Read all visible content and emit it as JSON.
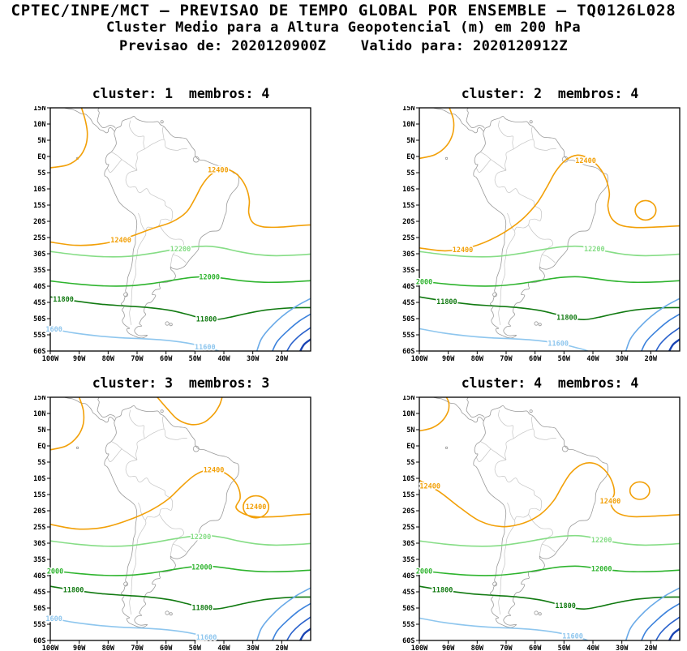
{
  "header": {
    "title": "CPTEC/INPE/MCT — PREVISAO DE TEMPO GLOBAL POR ENSEMBLE — TQ0126L028",
    "subtitle": "Cluster Medio para a Altura Geopotencial (m) em 200 hPa",
    "validity": "Previsao de: 2020120900Z    Valido para: 2020120912Z"
  },
  "panels": [
    {
      "title": "cluster: 1  membros: 4"
    },
    {
      "title": "cluster: 2  membros: 4"
    },
    {
      "title": "cluster: 3  membros: 3"
    },
    {
      "title": "cluster: 4  membros: 4"
    }
  ],
  "axes": {
    "lat": [
      {
        "label": "15N",
        "deg": 15
      },
      {
        "label": "10N",
        "deg": 10
      },
      {
        "label": "5N",
        "deg": 5
      },
      {
        "label": "EQ",
        "deg": 0
      },
      {
        "label": "5S",
        "deg": -5
      },
      {
        "label": "10S",
        "deg": -10
      },
      {
        "label": "15S",
        "deg": -15
      },
      {
        "label": "20S",
        "deg": -20
      },
      {
        "label": "25S",
        "deg": -25
      },
      {
        "label": "30S",
        "deg": -30
      },
      {
        "label": "35S",
        "deg": -35
      },
      {
        "label": "40S",
        "deg": -40
      },
      {
        "label": "45S",
        "deg": -45
      },
      {
        "label": "50S",
        "deg": -50
      },
      {
        "label": "55S",
        "deg": -55
      },
      {
        "label": "60S",
        "deg": -60
      }
    ],
    "lon": [
      {
        "label": "100W",
        "deg": -100
      },
      {
        "label": "90W",
        "deg": -90
      },
      {
        "label": "80W",
        "deg": -80
      },
      {
        "label": "70W",
        "deg": -70
      },
      {
        "label": "60W",
        "deg": -60
      },
      {
        "label": "50W",
        "deg": -50
      },
      {
        "label": "40W",
        "deg": -40
      },
      {
        "label": "30W",
        "deg": -30
      },
      {
        "label": "20W",
        "deg": -20
      }
    ]
  },
  "chart_data": {
    "type": "contour-map",
    "title": "Cluster Medio para a Altura Geopotencial (m) em 200 hPa",
    "model": "TQ0126L028",
    "init_time": "2020120900Z",
    "valid_time": "2020120912Z",
    "region": {
      "lon_min": -100,
      "lon_max": -10,
      "lat_min": -60,
      "lat_max": 15
    },
    "contour_interval_m": 200,
    "levels_m": [
      12400,
      12200,
      12000,
      11800,
      11600,
      11400,
      11200,
      11000,
      10800
    ],
    "level_colors": {
      "12400": "#f2a008",
      "12200": "#86dd86",
      "12000": "#2eb42e",
      "11800": "#117a11",
      "11600": "#8ec6ee",
      "11400": "#6aaae8",
      "11200": "#3c82dc",
      "11000": "#2b62cc",
      "10800": "#1a44b4"
    },
    "panels": [
      {
        "cluster": 1,
        "members": 4,
        "contour_labels": [
          {
            "value": 12400,
            "text": "12400",
            "lon": -75.6,
            "lat": -25.8
          },
          {
            "value": 12400,
            "text": "12400",
            "lon": -42.0,
            "lat": -4.1
          },
          {
            "value": 12200,
            "text": "12200",
            "lon": -55.0,
            "lat": -28.5
          },
          {
            "value": 12000,
            "text": "12000",
            "lon": -45.0,
            "lat": -37.1
          },
          {
            "value": 11800,
            "text": "11800",
            "lon": -95.5,
            "lat": -44.0
          },
          {
            "value": 11800,
            "text": "11800",
            "lon": -46.0,
            "lat": -50.1
          },
          {
            "value": 11600,
            "text": "1600",
            "lon": -98.7,
            "lat": -53.3
          },
          {
            "value": 11600,
            "text": "11600",
            "lon": -46.5,
            "lat": -58.8
          }
        ]
      },
      {
        "cluster": 2,
        "members": 4,
        "contour_labels": [
          {
            "value": 12400,
            "text": "12400",
            "lon": -85.0,
            "lat": -28.7
          },
          {
            "value": 12400,
            "text": "12400",
            "lon": -42.5,
            "lat": -1.2
          },
          {
            "value": 12200,
            "text": "12200",
            "lon": -39.5,
            "lat": -28.5
          },
          {
            "value": 12000,
            "text": "2000",
            "lon": -98.3,
            "lat": -38.6
          },
          {
            "value": 11800,
            "text": "11800",
            "lon": -90.5,
            "lat": -44.7
          },
          {
            "value": 11800,
            "text": "11800",
            "lon": -49.0,
            "lat": -49.6
          },
          {
            "value": 11600,
            "text": "11600",
            "lon": -52.0,
            "lat": -57.6
          }
        ]
      },
      {
        "cluster": 3,
        "members": 3,
        "contour_labels": [
          {
            "value": 12400,
            "text": "12400",
            "lon": -43.5,
            "lat": -7.4
          },
          {
            "value": 12400,
            "text": "12400",
            "lon": -28.9,
            "lat": -18.8
          },
          {
            "value": 12200,
            "text": "12200",
            "lon": -48.0,
            "lat": -28.0
          },
          {
            "value": 12000,
            "text": "2000",
            "lon": -98.3,
            "lat": -38.6
          },
          {
            "value": 12000,
            "text": "12000",
            "lon": -47.6,
            "lat": -37.4
          },
          {
            "value": 11800,
            "text": "11800",
            "lon": -92.0,
            "lat": -44.4
          },
          {
            "value": 11800,
            "text": "11800",
            "lon": -47.5,
            "lat": -49.9
          },
          {
            "value": 11600,
            "text": "1600",
            "lon": -98.7,
            "lat": -53.3
          },
          {
            "value": 11600,
            "text": "11600",
            "lon": -46.0,
            "lat": -59.0
          }
        ]
      },
      {
        "cluster": 4,
        "members": 4,
        "contour_labels": [
          {
            "value": 12400,
            "text": "12400",
            "lon": -96.3,
            "lat": -12.4
          },
          {
            "value": 12400,
            "text": "12400",
            "lon": -34.0,
            "lat": -17.0
          },
          {
            "value": 12200,
            "text": "12200",
            "lon": -37.0,
            "lat": -29.0
          },
          {
            "value": 12000,
            "text": "2000",
            "lon": -98.3,
            "lat": -38.6
          },
          {
            "value": 12000,
            "text": "12000",
            "lon": -37.0,
            "lat": -37.9
          },
          {
            "value": 11800,
            "text": "11800",
            "lon": -92.0,
            "lat": -44.4
          },
          {
            "value": 11800,
            "text": "11800",
            "lon": -49.5,
            "lat": -49.3
          },
          {
            "value": 11600,
            "text": "11600",
            "lon": -47.0,
            "lat": -58.6
          }
        ]
      }
    ]
  }
}
